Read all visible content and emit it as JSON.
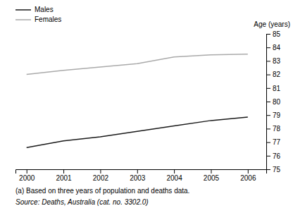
{
  "chart_data": {
    "type": "line",
    "x": [
      2000,
      2001,
      2002,
      2003,
      2004,
      2005,
      2006
    ],
    "series": [
      {
        "name": "Males",
        "color": "#1a1a1a",
        "values": [
          76.6,
          77.1,
          77.4,
          77.8,
          78.2,
          78.6,
          78.85
        ]
      },
      {
        "name": "Females",
        "color": "#aaaaaa",
        "values": [
          82.0,
          82.3,
          82.55,
          82.8,
          83.3,
          83.45,
          83.5
        ]
      }
    ],
    "xlim": [
      1999.7,
      2006.5
    ],
    "xticks": [
      2000,
      2001,
      2002,
      2003,
      2004,
      2005,
      2006
    ],
    "ylim": [
      75,
      85
    ],
    "yticks": [
      75,
      76,
      77,
      78,
      79,
      80,
      81,
      82,
      83,
      84,
      85
    ],
    "ylabel": "Age (years)",
    "legend": "top-left",
    "grid": false,
    "annotations": [
      "(a) Based on three years of population and deaths data.",
      "Source: Deaths, Australia (cat. no. 3302.0)"
    ]
  }
}
